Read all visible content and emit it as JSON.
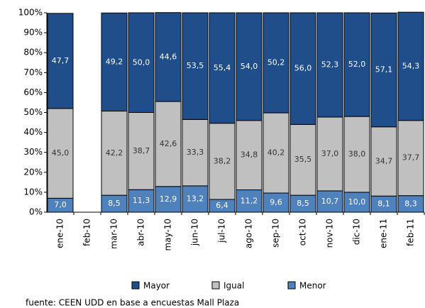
{
  "chart_data": {
    "type": "stacked-bar",
    "categories": [
      "ene-10",
      "feb-10",
      "mar-10",
      "abr-10",
      "may-10",
      "jun-10",
      "jul-10",
      "ago-10",
      "sep-10",
      "oct-10",
      "nov-10",
      "dic-10",
      "ene-11",
      "feb-11"
    ],
    "series": [
      {
        "name": "Mayor",
        "color": "#1f4e8a",
        "values": [
          47.7,
          null,
          49.2,
          50.0,
          44.6,
          53.5,
          55.4,
          54.0,
          50.2,
          56.0,
          52.3,
          52.0,
          57.1,
          54.3
        ],
        "value_labels": [
          "47,7",
          null,
          "49,2",
          "50,0",
          "44,6",
          "53,5",
          "55,4",
          "54,0",
          "50,2",
          "56,0",
          "52,3",
          "52,0",
          "57,1",
          "54,3"
        ]
      },
      {
        "name": "Igual",
        "color": "#c0c0c0",
        "values": [
          45.0,
          null,
          42.2,
          38.7,
          42.6,
          33.3,
          38.2,
          34.8,
          40.2,
          35.5,
          37.0,
          38.0,
          34.7,
          37.7
        ],
        "value_labels": [
          "45,0",
          null,
          "42,2",
          "38,7",
          "42,6",
          "33,3",
          "38,2",
          "34,8",
          "40,2",
          "35,5",
          "37,0",
          "38,0",
          "34,7",
          "37,7"
        ]
      },
      {
        "name": "Menor",
        "color": "#4f81bd",
        "values": [
          7.0,
          null,
          8.5,
          11.3,
          12.9,
          13.2,
          6.4,
          11.2,
          9.6,
          8.5,
          10.7,
          10.0,
          8.1,
          8.3
        ],
        "value_labels": [
          "7,0",
          null,
          "8,5",
          "11,3",
          "12,9",
          "13,2",
          "6,4",
          "11,2",
          "9,6",
          "8,5",
          "10,7",
          "10,0",
          "8,1",
          "8,3"
        ]
      }
    ],
    "ylim": [
      0,
      100
    ],
    "yticks": [
      {
        "value": 0,
        "label": "0%"
      },
      {
        "value": 10,
        "label": "10%"
      },
      {
        "value": 20,
        "label": "20%"
      },
      {
        "value": 30,
        "label": "30%"
      },
      {
        "value": 40,
        "label": "40%"
      },
      {
        "value": 50,
        "label": "50%"
      },
      {
        "value": 60,
        "label": "60%"
      },
      {
        "value": 70,
        "label": "70%"
      },
      {
        "value": 80,
        "label": "80%"
      },
      {
        "value": 90,
        "label": "90%"
      },
      {
        "value": 100,
        "label": "100%"
      }
    ],
    "source": "fuente:  CEEN UDD en base a encuestas Mall Plaza"
  }
}
